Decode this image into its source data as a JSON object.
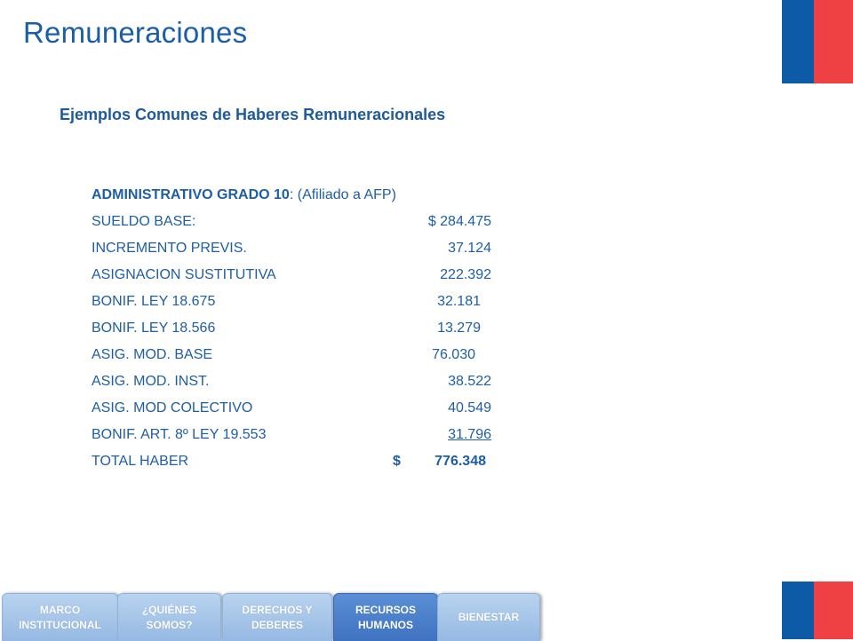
{
  "title": "Remuneraciones",
  "subtitle": "Ejemplos Comunes de Haberes Remuneracionales",
  "header": {
    "label": "ADMINISTRATIVO GRADO 10",
    "separator": ":",
    "note": "(Afiliado a AFP)"
  },
  "rows": [
    {
      "label": "SUELDO BASE:",
      "value": "$ 284.475"
    },
    {
      "label": "INCREMENTO  PREVIS.",
      "value": "37.124"
    },
    {
      "label": "ASIGNACION  SUSTITUTIVA",
      "value": "222.392"
    },
    {
      "label": "BONIF. LEY 18.675",
      "value": "32.181"
    },
    {
      "label": "BONIF. LEY 18.566",
      "value": "13.279"
    },
    {
      "label": "ASIG. MOD. BASE",
      "value": "76.030"
    },
    {
      "label": "ASIG. MOD. INST.",
      "value": "38.522"
    },
    {
      "label": "ASIG. MOD COLECTIVO",
      "value": "40.549"
    },
    {
      "label": "BONIF. ART. 8º LEY 19.553",
      "value": "31.796"
    }
  ],
  "total": {
    "label": "TOTAL  HABER",
    "currency": "$",
    "value": "776.348"
  },
  "nav": [
    {
      "label": "MARCO\nINSTITUCIONAL"
    },
    {
      "label": "¿QUIÉNES\nSOMOS?"
    },
    {
      "label": "DERECHOS Y\nDEBERES"
    },
    {
      "label": "RECURSOS\nHUMANOS"
    },
    {
      "label": "BIENESTAR"
    }
  ],
  "colors": {
    "flag_blue": "#0d5aa7",
    "flag_red": "#ef4044",
    "text_blue": "#1e5ea6",
    "nav_active": "#4a7fcb"
  }
}
